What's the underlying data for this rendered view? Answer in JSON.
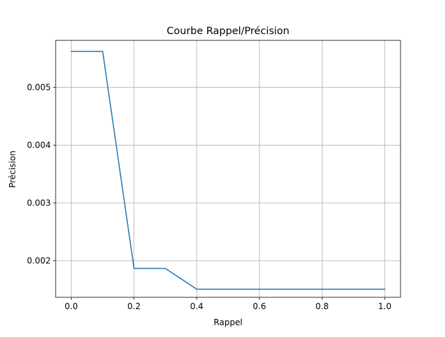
{
  "chart_data": {
    "type": "line",
    "title": "Courbe Rappel/Précision",
    "xlabel": "Rappel",
    "ylabel": "Précision",
    "xlim": [
      -0.05,
      1.05
    ],
    "ylim": [
      0.00137,
      0.00581
    ],
    "xticks": [
      0.0,
      0.2,
      0.4,
      0.6,
      0.8,
      1.0
    ],
    "xtick_labels": [
      "0.0",
      "0.2",
      "0.4",
      "0.6",
      "0.8",
      "1.0"
    ],
    "yticks": [
      0.002,
      0.003,
      0.004,
      0.005
    ],
    "ytick_labels": [
      "0.002",
      "0.003",
      "0.004",
      "0.005"
    ],
    "grid": true,
    "series": [
      {
        "color": "#1f77b4",
        "x": [
          0.0,
          0.1,
          0.2,
          0.3,
          0.4,
          0.5,
          0.6,
          0.7,
          0.8,
          0.9,
          1.0
        ],
        "y": [
          0.00562,
          0.00562,
          0.00187,
          0.00187,
          0.00151,
          0.00151,
          0.00151,
          0.00151,
          0.00151,
          0.00151,
          0.00151
        ]
      }
    ]
  }
}
